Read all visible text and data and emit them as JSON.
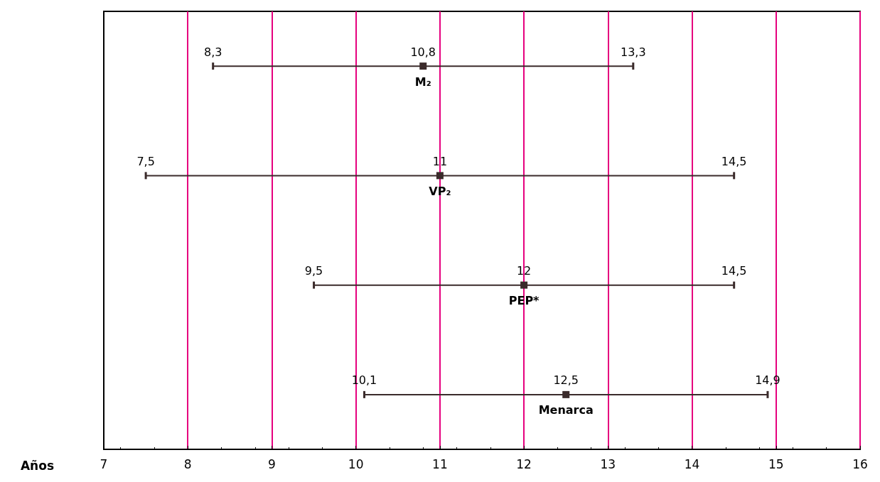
{
  "chart_data": {
    "type": "scatter",
    "orientation": "horizontal",
    "xlabel": "Años",
    "categories": [
      "M₂",
      "VP₂",
      "PEP*",
      "Menarca"
    ],
    "series": [
      {
        "color": "#3b2b2b",
        "marker": "square",
        "values": [
          10.8,
          11,
          12,
          12.5
        ],
        "value_labels": [
          "10,8",
          "11",
          "12",
          "12,5"
        ],
        "errors": [
          [
            8.3,
            13.3
          ],
          [
            7.5,
            14.5
          ],
          [
            9.5,
            14.5
          ],
          [
            10.1,
            14.9
          ]
        ]
      }
    ],
    "annotations": [
      {
        "text": "8,3",
        "x": 8.3,
        "y": "M₂"
      },
      {
        "text": "13,3",
        "x": 13.3,
        "y": "M₂"
      },
      {
        "text": "7,5",
        "x": 7.5,
        "y": "VP₂"
      },
      {
        "text": "14,5",
        "x": 14.5,
        "y": "VP₂"
      },
      {
        "text": "9,5",
        "x": 9.5,
        "y": "PEP*"
      },
      {
        "text": "14,5",
        "x": 14.5,
        "y": "PEP*"
      },
      {
        "text": "10,1",
        "x": 10.1,
        "y": "Menarca"
      },
      {
        "text": "14,9",
        "x": 14.9,
        "y": "Menarca"
      }
    ],
    "xlim": [
      7,
      16
    ],
    "xticks": [
      7,
      8,
      9,
      10,
      11,
      12,
      13,
      14,
      15,
      16
    ],
    "grid": "x",
    "tick_labels": "x"
  }
}
